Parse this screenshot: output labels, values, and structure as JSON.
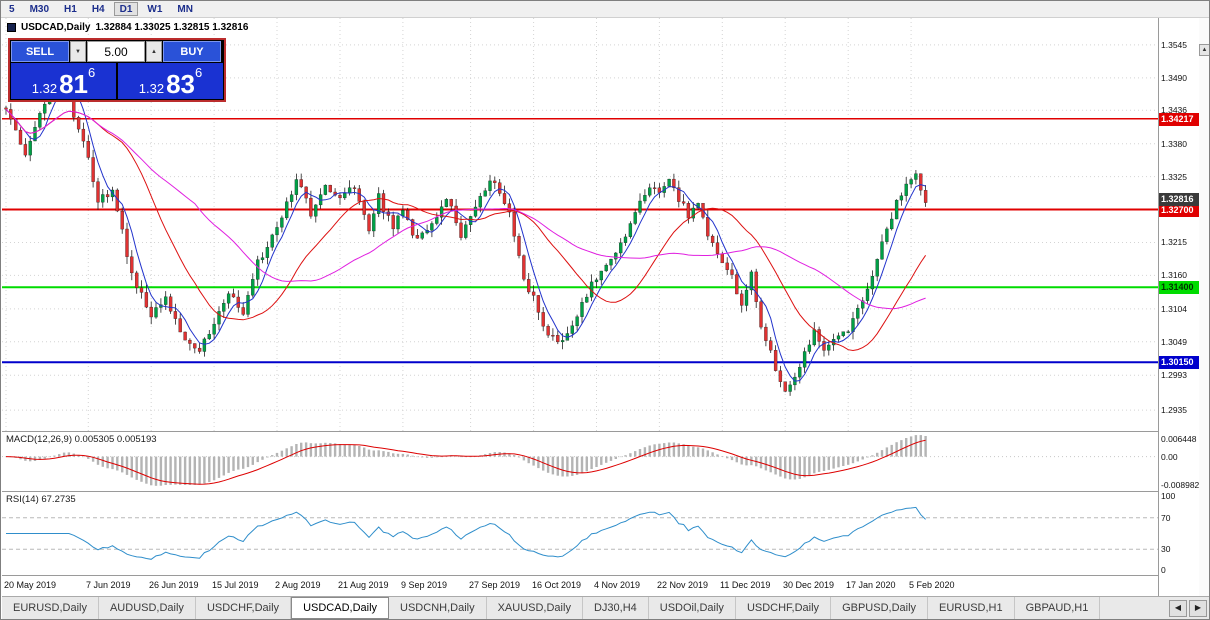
{
  "toolbar": {
    "timeframes": [
      {
        "label": "5",
        "active": false
      },
      {
        "label": "M30",
        "active": false
      },
      {
        "label": "H1",
        "active": false
      },
      {
        "label": "H4",
        "active": false
      },
      {
        "label": "D1",
        "active": true
      },
      {
        "label": "W1",
        "active": false
      },
      {
        "label": "MN",
        "active": false
      }
    ]
  },
  "chart_window": {
    "title": "USDCAD,Daily",
    "ohlc_text": "1.32884 1.33025 1.32815 1.32816"
  },
  "trade_panel": {
    "sell_label": "SELL",
    "buy_label": "BUY",
    "lot_value": "5.00",
    "bid": {
      "prefix": "1.32",
      "big": "81",
      "sup": "6"
    },
    "ask": {
      "prefix": "1.32",
      "big": "83",
      "sup": "6"
    }
  },
  "icons": {
    "scroll_up": "▲",
    "spinner_down": "▼",
    "spinner_up": "▲",
    "tabs_prev": "◀",
    "tabs_next": "▶"
  },
  "price_axis": {
    "ticks": [
      "1.3545",
      "1.3490",
      "1.3436",
      "1.3380",
      "1.3325",
      "1.3270",
      "1.3215",
      "1.3160",
      "1.3104",
      "1.3049",
      "1.2993",
      "1.2935"
    ],
    "tick_prices": [
      1.3545,
      1.349,
      1.3436,
      1.338,
      1.3325,
      1.327,
      1.3215,
      1.316,
      1.3104,
      1.3049,
      1.2993,
      1.2935
    ],
    "last_price_badge": {
      "text": "1.32816",
      "price": 1.32816,
      "bg": "#3a3a3a",
      "fg": "#ffffff"
    }
  },
  "levels": [
    {
      "price": 1.34217,
      "label": "1.34217",
      "color": "#e00000",
      "badge_bg": "#e00000",
      "badge_fg": "#ffffff",
      "width": 1.5
    },
    {
      "price": 1.327,
      "label": "1.32700",
      "color": "#e00000",
      "badge_bg": "#e00000",
      "badge_fg": "#ffffff",
      "width": 2
    },
    {
      "price": 1.314,
      "label": "1.31400",
      "color": "#00dc00",
      "badge_bg": "#00dc00",
      "badge_fg": "#003300",
      "width": 2
    },
    {
      "price": 1.3015,
      "label": "1.30150",
      "color": "#0000cc",
      "badge_bg": "#0000cc",
      "badge_fg": "#ffffff",
      "width": 2
    }
  ],
  "dates": [
    {
      "label": "20 May 2019",
      "bar": 0
    },
    {
      "label": "7 Jun 2019",
      "bar": 17
    },
    {
      "label": "26 Jun 2019",
      "bar": 30
    },
    {
      "label": "15 Jul 2019",
      "bar": 43
    },
    {
      "label": "2 Aug 2019",
      "bar": 56
    },
    {
      "label": "21 Aug 2019",
      "bar": 69
    },
    {
      "label": "9 Sep 2019",
      "bar": 82
    },
    {
      "label": "27 Sep 2019",
      "bar": 96
    },
    {
      "label": "16 Oct 2019",
      "bar": 109
    },
    {
      "label": "4 Nov 2019",
      "bar": 122
    },
    {
      "label": "22 Nov 2019",
      "bar": 135
    },
    {
      "label": "11 Dec 2019",
      "bar": 148
    },
    {
      "label": "30 Dec 2019",
      "bar": 161
    },
    {
      "label": "17 Jan 2020",
      "bar": 174
    },
    {
      "label": "5 Feb 2020",
      "bar": 187
    }
  ],
  "macd_panel": {
    "label": "MACD(12,26,9) 0.005305 0.005193",
    "axis_labels": [
      "0.006448",
      "0.00",
      "-0.008982"
    ],
    "histogram_color": "#b4b4b4",
    "signal_color": "#dd0000"
  },
  "rsi_panel": {
    "label": "RSI(14) 67.2735",
    "axis_labels": [
      "100",
      "70",
      "30",
      "0"
    ],
    "level_values": [
      70,
      30
    ],
    "line_color": "#2f8ecb"
  },
  "tabs": {
    "items": [
      "EURUSD,Daily",
      "AUDUSD,Daily",
      "USDCHF,Daily",
      "USDCAD,Daily",
      "USDCNH,Daily",
      "XAUUSD,Daily",
      "DJ30,H4",
      "USDOil,Daily",
      "USDCHF,Daily",
      "GBPUSD,Daily",
      "EURUSD,H1",
      "GBPAUD,H1"
    ],
    "active": "USDCAD,Daily"
  },
  "chart_data": {
    "type": "candlestick",
    "symbol": "USDCAD",
    "timeframe": "Daily",
    "bars": 191,
    "price_range": [
      1.29,
      1.359
    ],
    "up_color": "#00a046",
    "down_color": "#e03232",
    "wick_color": "#222222",
    "grid_color": "#d4d4d4",
    "close_anchors": [
      [
        0,
        1.344
      ],
      [
        4,
        1.3355
      ],
      [
        9,
        1.347
      ],
      [
        12,
        1.35
      ],
      [
        14,
        1.343
      ],
      [
        17,
        1.3355
      ],
      [
        19,
        1.328
      ],
      [
        22,
        1.3305
      ],
      [
        26,
        1.316
      ],
      [
        30,
        1.309
      ],
      [
        33,
        1.3125
      ],
      [
        36,
        1.306
      ],
      [
        40,
        1.3038
      ],
      [
        43,
        1.308
      ],
      [
        46,
        1.313
      ],
      [
        49,
        1.31
      ],
      [
        52,
        1.318
      ],
      [
        56,
        1.3235
      ],
      [
        58,
        1.328
      ],
      [
        60,
        1.332
      ],
      [
        63,
        1.3265
      ],
      [
        66,
        1.3305
      ],
      [
        69,
        1.329
      ],
      [
        72,
        1.331
      ],
      [
        75,
        1.323
      ],
      [
        77,
        1.329
      ],
      [
        80,
        1.324
      ],
      [
        82,
        1.3265
      ],
      [
        85,
        1.3215
      ],
      [
        88,
        1.325
      ],
      [
        91,
        1.329
      ],
      [
        94,
        1.323
      ],
      [
        96,
        1.3255
      ],
      [
        99,
        1.3305
      ],
      [
        101,
        1.332
      ],
      [
        104,
        1.326
      ],
      [
        107,
        1.315
      ],
      [
        109,
        1.312
      ],
      [
        112,
        1.306
      ],
      [
        115,
        1.3045
      ],
      [
        118,
        1.309
      ],
      [
        120,
        1.313
      ],
      [
        122,
        1.3155
      ],
      [
        125,
        1.319
      ],
      [
        128,
        1.323
      ],
      [
        131,
        1.328
      ],
      [
        133,
        1.3305
      ],
      [
        135,
        1.33
      ],
      [
        137,
        1.332
      ],
      [
        139,
        1.329
      ],
      [
        141,
        1.326
      ],
      [
        143,
        1.328
      ],
      [
        145,
        1.323
      ],
      [
        148,
        1.318
      ],
      [
        150,
        1.316
      ],
      [
        152,
        1.311
      ],
      [
        154,
        1.3165
      ],
      [
        156,
        1.308
      ],
      [
        158,
        1.303
      ],
      [
        160,
        1.298
      ],
      [
        161,
        1.296
      ],
      [
        163,
        1.299
      ],
      [
        165,
        1.303
      ],
      [
        167,
        1.3065
      ],
      [
        169,
        1.304
      ],
      [
        171,
        1.306
      ],
      [
        174,
        1.307
      ],
      [
        176,
        1.31
      ],
      [
        178,
        1.314
      ],
      [
        180,
        1.3185
      ],
      [
        182,
        1.324
      ],
      [
        184,
        1.328
      ],
      [
        186,
        1.331
      ],
      [
        188,
        1.3325
      ],
      [
        190,
        1.32816
      ]
    ],
    "moving_averages": [
      {
        "period": 5,
        "color": "#2233cc"
      },
      {
        "period": 20,
        "color": "#dd1111"
      },
      {
        "period": 40,
        "color": "#e020e0"
      }
    ],
    "last_close": 1.32816
  }
}
